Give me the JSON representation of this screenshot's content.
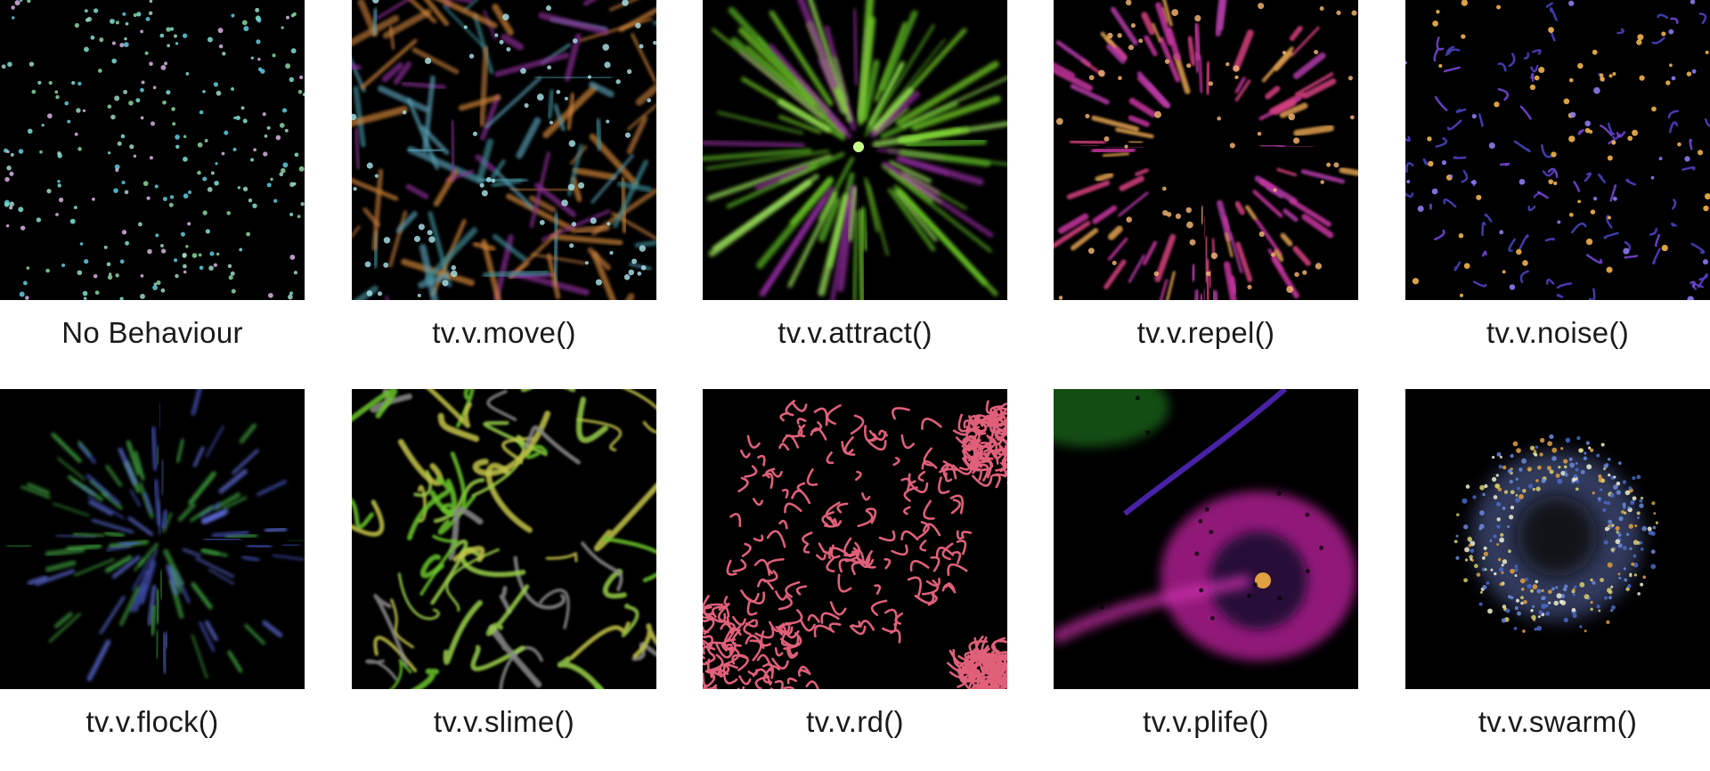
{
  "tiles": [
    {
      "caption": "No Behaviour",
      "visual": "static-particles"
    },
    {
      "caption": "tv.v.move()",
      "visual": "moving-streaks"
    },
    {
      "caption": "tv.v.attract()",
      "visual": "radial-attraction"
    },
    {
      "caption": "tv.v.repel()",
      "visual": "radial-repulsion"
    },
    {
      "caption": "tv.v.noise()",
      "visual": "noise-trails"
    },
    {
      "caption": "tv.v.flock()",
      "visual": "flocking"
    },
    {
      "caption": "tv.v.slime()",
      "visual": "slime-network"
    },
    {
      "caption": "tv.v.rd()",
      "visual": "reaction-diffusion"
    },
    {
      "caption": "tv.v.plife()",
      "visual": "particle-life"
    },
    {
      "caption": "tv.v.swarm()",
      "visual": "swarm-ring"
    }
  ],
  "colors": {
    "background": "#ffffff",
    "tile_background": "#000000",
    "caption_text": "#1a1a1a"
  }
}
